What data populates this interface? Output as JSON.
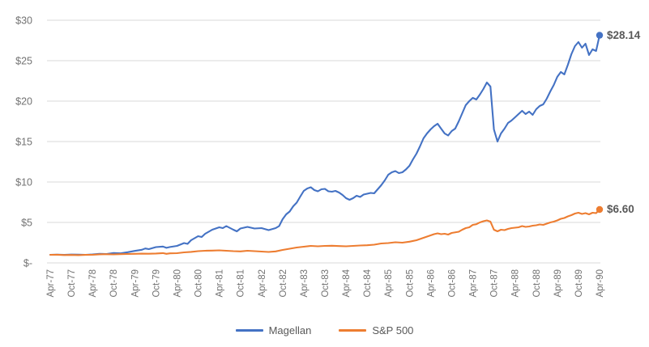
{
  "chart_data": {
    "type": "line",
    "title": "",
    "xlabel": "",
    "ylabel": "",
    "ylim": [
      0,
      30
    ],
    "grid": "horizontal",
    "legend_position": "bottom",
    "x_unit": "months, monthly data from Apr-1977 (index 0) to Apr-1990 (index 156)",
    "x_tick_labels": [
      "Apr-77",
      "Oct-77",
      "Apr-78",
      "Oct-78",
      "Apr-79",
      "Oct-79",
      "Apr-80",
      "Oct-80",
      "Apr-81",
      "Oct-81",
      "Apr-82",
      "Oct-82",
      "Apr-83",
      "Oct-83",
      "Apr-84",
      "Oct-84",
      "Apr-85",
      "Oct-85",
      "Apr-86",
      "Oct-86",
      "Apr-87",
      "Oct-87",
      "Apr-88",
      "Oct-88",
      "Apr-89",
      "Oct-89",
      "Apr-90"
    ],
    "x_tick_month_interval": 6,
    "y_ticks": [
      {
        "label": "$-",
        "value": 0
      },
      {
        "label": "$5",
        "value": 5
      },
      {
        "label": "$10",
        "value": 10
      },
      {
        "label": "$15",
        "value": 15
      },
      {
        "label": "$20",
        "value": 20
      },
      {
        "label": "$25",
        "value": 25
      },
      {
        "label": "$30",
        "value": 30
      }
    ],
    "series": [
      {
        "name": "Magellan",
        "color": "#4472C4",
        "end_label": "$28.14",
        "end_value": 28.14,
        "points": [
          [
            0,
            1.0
          ],
          [
            2,
            1.02
          ],
          [
            4,
            0.99
          ],
          [
            6,
            1.03
          ],
          [
            8,
            1.02
          ],
          [
            10,
            1.0
          ],
          [
            12,
            1.05
          ],
          [
            14,
            1.12
          ],
          [
            16,
            1.1
          ],
          [
            18,
            1.22
          ],
          [
            20,
            1.18
          ],
          [
            22,
            1.32
          ],
          [
            24,
            1.48
          ],
          [
            26,
            1.62
          ],
          [
            27,
            1.78
          ],
          [
            28,
            1.7
          ],
          [
            30,
            1.95
          ],
          [
            32,
            2.02
          ],
          [
            33,
            1.86
          ],
          [
            34,
            1.96
          ],
          [
            36,
            2.1
          ],
          [
            38,
            2.45
          ],
          [
            39,
            2.35
          ],
          [
            40,
            2.8
          ],
          [
            42,
            3.3
          ],
          [
            43,
            3.2
          ],
          [
            44,
            3.6
          ],
          [
            46,
            4.1
          ],
          [
            48,
            4.4
          ],
          [
            49,
            4.3
          ],
          [
            50,
            4.55
          ],
          [
            52,
            4.1
          ],
          [
            53,
            3.9
          ],
          [
            54,
            4.25
          ],
          [
            56,
            4.45
          ],
          [
            58,
            4.25
          ],
          [
            60,
            4.3
          ],
          [
            62,
            4.05
          ],
          [
            64,
            4.3
          ],
          [
            65,
            4.55
          ],
          [
            66,
            5.4
          ],
          [
            67,
            6.0
          ],
          [
            68,
            6.35
          ],
          [
            69,
            7.0
          ],
          [
            70,
            7.45
          ],
          [
            71,
            8.2
          ],
          [
            72,
            8.9
          ],
          [
            73,
            9.2
          ],
          [
            74,
            9.35
          ],
          [
            75,
            9.0
          ],
          [
            76,
            8.85
          ],
          [
            77,
            9.1
          ],
          [
            78,
            9.15
          ],
          [
            79,
            8.85
          ],
          [
            80,
            8.8
          ],
          [
            81,
            8.9
          ],
          [
            82,
            8.7
          ],
          [
            83,
            8.4
          ],
          [
            84,
            8.0
          ],
          [
            85,
            7.8
          ],
          [
            86,
            8.0
          ],
          [
            87,
            8.3
          ],
          [
            88,
            8.15
          ],
          [
            89,
            8.45
          ],
          [
            90,
            8.55
          ],
          [
            91,
            8.65
          ],
          [
            92,
            8.6
          ],
          [
            94,
            9.6
          ],
          [
            95,
            10.2
          ],
          [
            96,
            10.9
          ],
          [
            97,
            11.2
          ],
          [
            98,
            11.35
          ],
          [
            99,
            11.1
          ],
          [
            100,
            11.2
          ],
          [
            101,
            11.55
          ],
          [
            102,
            12.0
          ],
          [
            103,
            12.8
          ],
          [
            104,
            13.5
          ],
          [
            105,
            14.4
          ],
          [
            106,
            15.4
          ],
          [
            107,
            16.0
          ],
          [
            108,
            16.5
          ],
          [
            109,
            16.9
          ],
          [
            110,
            17.2
          ],
          [
            111,
            16.6
          ],
          [
            112,
            16.0
          ],
          [
            113,
            15.75
          ],
          [
            114,
            16.3
          ],
          [
            115,
            16.6
          ],
          [
            116,
            17.5
          ],
          [
            117,
            18.5
          ],
          [
            118,
            19.5
          ],
          [
            119,
            20.0
          ],
          [
            120,
            20.4
          ],
          [
            121,
            20.2
          ],
          [
            122,
            20.8
          ],
          [
            123,
            21.5
          ],
          [
            124,
            22.3
          ],
          [
            125,
            21.8
          ],
          [
            126,
            16.5
          ],
          [
            127,
            15.0
          ],
          [
            128,
            16.0
          ],
          [
            129,
            16.6
          ],
          [
            130,
            17.3
          ],
          [
            131,
            17.6
          ],
          [
            132,
            18.0
          ],
          [
            133,
            18.4
          ],
          [
            134,
            18.8
          ],
          [
            135,
            18.4
          ],
          [
            136,
            18.7
          ],
          [
            137,
            18.3
          ],
          [
            138,
            19.0
          ],
          [
            139,
            19.4
          ],
          [
            140,
            19.6
          ],
          [
            141,
            20.3
          ],
          [
            142,
            21.2
          ],
          [
            143,
            22.0
          ],
          [
            144,
            23.0
          ],
          [
            145,
            23.6
          ],
          [
            146,
            23.3
          ],
          [
            147,
            24.5
          ],
          [
            148,
            25.8
          ],
          [
            149,
            26.8
          ],
          [
            150,
            27.3
          ],
          [
            151,
            26.6
          ],
          [
            152,
            27.1
          ],
          [
            153,
            25.7
          ],
          [
            154,
            26.4
          ],
          [
            155,
            26.2
          ],
          [
            156,
            28.14
          ]
        ]
      },
      {
        "name": "S&P 500",
        "color": "#ED7D31",
        "end_label": "$6.60",
        "end_value": 6.6,
        "points": [
          [
            0,
            1.0
          ],
          [
            2,
            1.01
          ],
          [
            4,
            0.97
          ],
          [
            6,
            0.98
          ],
          [
            8,
            0.96
          ],
          [
            10,
            0.99
          ],
          [
            12,
            1.0
          ],
          [
            14,
            1.06
          ],
          [
            16,
            1.07
          ],
          [
            18,
            1.05
          ],
          [
            20,
            1.08
          ],
          [
            22,
            1.1
          ],
          [
            24,
            1.12
          ],
          [
            26,
            1.14
          ],
          [
            28,
            1.13
          ],
          [
            30,
            1.16
          ],
          [
            32,
            1.21
          ],
          [
            33,
            1.12
          ],
          [
            34,
            1.18
          ],
          [
            36,
            1.2
          ],
          [
            38,
            1.3
          ],
          [
            40,
            1.36
          ],
          [
            42,
            1.45
          ],
          [
            44,
            1.5
          ],
          [
            46,
            1.52
          ],
          [
            48,
            1.55
          ],
          [
            50,
            1.5
          ],
          [
            52,
            1.45
          ],
          [
            54,
            1.42
          ],
          [
            56,
            1.5
          ],
          [
            58,
            1.45
          ],
          [
            60,
            1.4
          ],
          [
            62,
            1.35
          ],
          [
            64,
            1.42
          ],
          [
            66,
            1.6
          ],
          [
            68,
            1.75
          ],
          [
            70,
            1.9
          ],
          [
            72,
            2.0
          ],
          [
            74,
            2.1
          ],
          [
            76,
            2.05
          ],
          [
            78,
            2.1
          ],
          [
            80,
            2.12
          ],
          [
            82,
            2.08
          ],
          [
            84,
            2.05
          ],
          [
            86,
            2.1
          ],
          [
            88,
            2.15
          ],
          [
            90,
            2.18
          ],
          [
            92,
            2.25
          ],
          [
            94,
            2.4
          ],
          [
            96,
            2.45
          ],
          [
            98,
            2.55
          ],
          [
            100,
            2.5
          ],
          [
            102,
            2.62
          ],
          [
            104,
            2.8
          ],
          [
            106,
            3.1
          ],
          [
            108,
            3.4
          ],
          [
            109,
            3.55
          ],
          [
            110,
            3.65
          ],
          [
            111,
            3.55
          ],
          [
            112,
            3.6
          ],
          [
            113,
            3.5
          ],
          [
            114,
            3.7
          ],
          [
            116,
            3.85
          ],
          [
            117,
            4.1
          ],
          [
            118,
            4.3
          ],
          [
            119,
            4.4
          ],
          [
            120,
            4.7
          ],
          [
            121,
            4.78
          ],
          [
            122,
            5.0
          ],
          [
            123,
            5.15
          ],
          [
            124,
            5.25
          ],
          [
            125,
            5.1
          ],
          [
            126,
            4.1
          ],
          [
            127,
            3.9
          ],
          [
            128,
            4.1
          ],
          [
            129,
            4.05
          ],
          [
            130,
            4.2
          ],
          [
            131,
            4.3
          ],
          [
            132,
            4.35
          ],
          [
            133,
            4.4
          ],
          [
            134,
            4.55
          ],
          [
            135,
            4.45
          ],
          [
            136,
            4.5
          ],
          [
            137,
            4.6
          ],
          [
            138,
            4.65
          ],
          [
            139,
            4.75
          ],
          [
            140,
            4.7
          ],
          [
            141,
            4.85
          ],
          [
            142,
            5.0
          ],
          [
            143,
            5.1
          ],
          [
            144,
            5.25
          ],
          [
            145,
            5.45
          ],
          [
            146,
            5.55
          ],
          [
            147,
            5.75
          ],
          [
            148,
            5.9
          ],
          [
            149,
            6.1
          ],
          [
            150,
            6.2
          ],
          [
            151,
            6.05
          ],
          [
            152,
            6.15
          ],
          [
            153,
            6.0
          ],
          [
            154,
            6.2
          ],
          [
            155,
            6.15
          ],
          [
            156,
            6.6
          ]
        ]
      }
    ]
  },
  "legend": {
    "items": [
      {
        "label": "Magellan",
        "color": "#4472C4"
      },
      {
        "label": "S&P 500",
        "color": "#ED7D31"
      }
    ]
  },
  "colors": {
    "background": "#ffffff",
    "gridline": "#D9D9D9",
    "axis_text": "#737373",
    "data_label_text": "#595959",
    "magellan_line": "#4472C4",
    "sp500_line": "#ED7D31"
  }
}
